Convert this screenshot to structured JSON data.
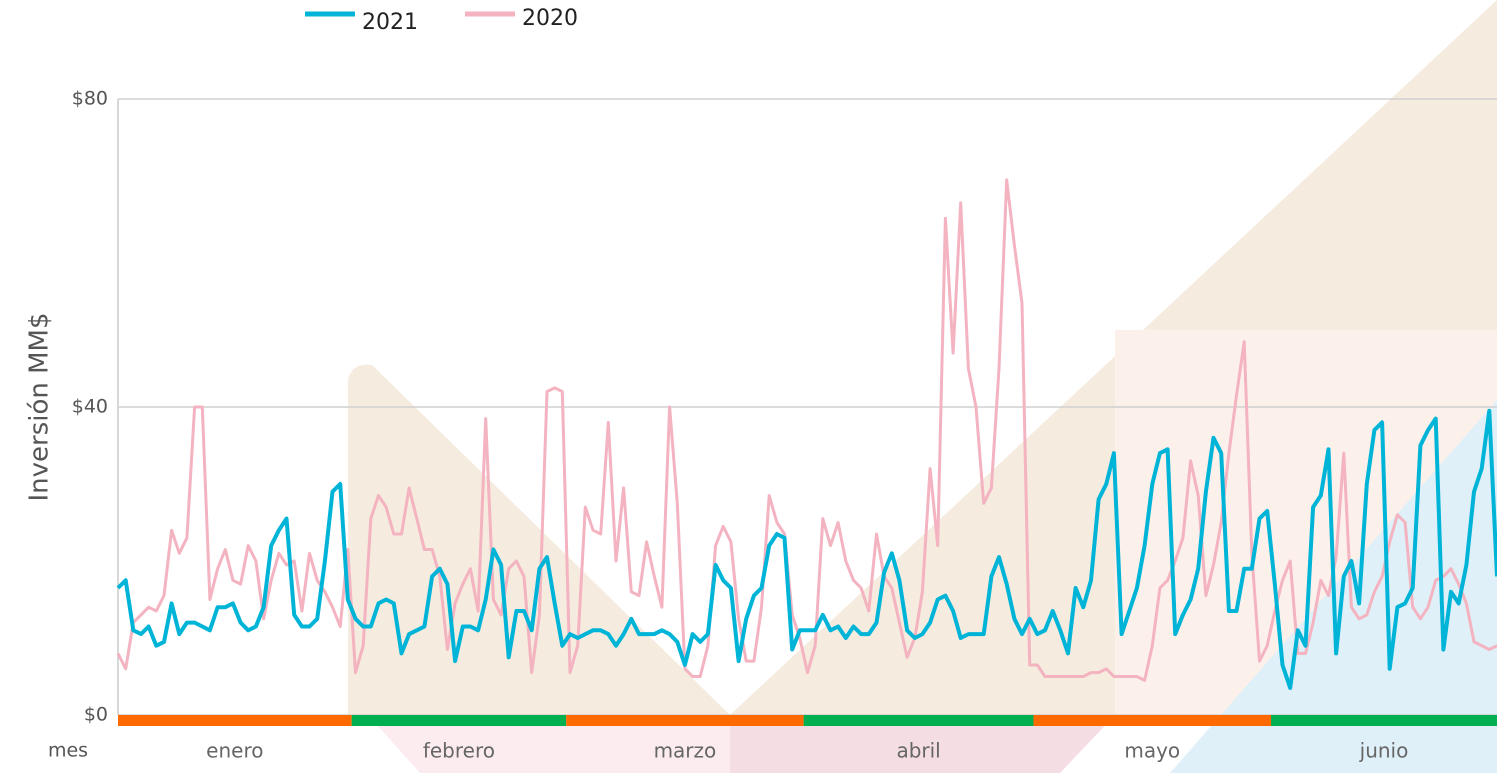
{
  "chart_data": {
    "type": "line",
    "ylabel": "Inversión MM$",
    "xlabel": "mes",
    "ylim": [
      0,
      80
    ],
    "yticks": [
      {
        "value": 0,
        "label": "$0"
      },
      {
        "value": 40,
        "label": "$40"
      },
      {
        "value": 80,
        "label": "$80"
      }
    ],
    "grid": true,
    "categories": [
      "enero",
      "febrero",
      "marzo",
      "abril",
      "mayo",
      "junio"
    ],
    "category_colors": [
      "#ff6a00",
      "#00b050",
      "#ff6a00",
      "#00b050",
      "#ff6a00",
      "#00b050"
    ],
    "series": [
      {
        "name": "2021",
        "color": "#00b4d8",
        "values": [
          [
            16.5,
            17.5,
            11,
            10.5,
            11.5,
            9,
            9.5,
            14.5,
            10.5,
            12,
            12,
            11.5,
            11,
            14,
            14,
            14.5,
            12,
            11,
            11.5,
            14,
            22,
            24,
            25.5,
            13,
            11.5,
            11.5,
            12.5,
            20,
            29,
            30,
            15
          ],
          [
            12.5,
            11.5,
            11.5,
            14.5,
            15,
            14.5,
            8,
            10.5,
            11,
            11.5,
            18,
            19,
            17,
            7,
            11.5,
            11.5,
            11,
            15,
            21.5,
            19.5,
            7.5,
            13.5,
            13.5,
            11,
            19,
            20.5,
            14.5,
            9
          ],
          [
            10.5,
            10,
            10.5,
            11,
            11,
            10.5,
            9,
            10.5,
            12.5,
            10.5,
            10.5,
            10.5,
            11,
            10.5,
            9.5,
            6.5,
            10.5,
            9.5,
            10.5,
            19.5,
            17.5,
            16.5,
            7,
            12.5,
            15.5,
            16.5,
            22,
            23.5,
            23,
            8.5,
            11
          ],
          [
            11,
            11,
            13,
            11,
            11.5,
            10,
            11.5,
            10.5,
            10.5,
            12,
            18.5,
            21,
            17.5,
            11,
            10,
            10.5,
            12,
            15,
            15.5,
            13.5,
            10,
            10.5,
            10.5,
            10.5,
            18,
            20.5,
            17,
            12.5,
            10.5,
            12.5
          ],
          [
            10.5,
            11,
            13.5,
            11,
            8,
            16.5,
            14,
            17.5,
            28,
            30,
            34,
            10.5,
            13.5,
            16.5,
            22,
            30,
            34,
            34.5,
            10.5,
            13,
            15,
            19,
            29,
            36,
            34,
            13.5,
            13.5,
            19,
            19,
            25.5,
            26.5
          ],
          [
            17,
            6.5,
            3.5,
            11,
            9,
            27,
            28.5,
            34.5,
            8,
            18,
            20,
            14.5,
            30,
            37,
            38,
            6,
            14,
            14.5,
            16.5,
            35,
            37,
            38.5,
            8.5,
            16,
            14.5,
            19.5,
            29,
            32,
            39.5,
            18
          ]
        ]
      },
      {
        "name": "2020",
        "color": "#f4b3c0",
        "values": [
          [
            8,
            6,
            12,
            13,
            14,
            13.5,
            15.5,
            24,
            21,
            23,
            40,
            40,
            15,
            19,
            21.5,
            17.5,
            17,
            22,
            20,
            12.5,
            17.5,
            21,
            19.5,
            20,
            13.5,
            21,
            17.5,
            16,
            14,
            11.5,
            21.5
          ],
          [
            5.5,
            9,
            25.5,
            28.5,
            27,
            23.5,
            23.5,
            29.5,
            25.5,
            21.5,
            21.5,
            18,
            8.5,
            14.5,
            17,
            19,
            13.5,
            38.5,
            15,
            13,
            19,
            20,
            18,
            5.5,
            13,
            42,
            42.5,
            42
          ],
          [
            5.5,
            9,
            27,
            24,
            23.5,
            38,
            20,
            29.5,
            16,
            15.5,
            22.5,
            18,
            14,
            40,
            27.5,
            6,
            5,
            5,
            9,
            22,
            24.5,
            22.5,
            12.5,
            7,
            7,
            14,
            28.5,
            25,
            23.5,
            13,
            10
          ],
          [
            5.5,
            9,
            25.5,
            22,
            25,
            20,
            17.5,
            16.5,
            13.5,
            23.5,
            18,
            16.5,
            12,
            7.5,
            10,
            16,
            32,
            22,
            64.5,
            47,
            66.5,
            45,
            40,
            27.5,
            29.5,
            45,
            69.5,
            61,
            53.5,
            6.5
          ],
          [
            6.5,
            5,
            5,
            5,
            5,
            5,
            5,
            5.5,
            5.5,
            6,
            5,
            5,
            5,
            5,
            4.5,
            9,
            16.5,
            17.5,
            20,
            23,
            33,
            28.5,
            15.5,
            19.5,
            25,
            34,
            41.5,
            48.5,
            21,
            7,
            9
          ],
          [
            13.5,
            17.5,
            20,
            8,
            8,
            12,
            17.5,
            15.5,
            20.5,
            34,
            14,
            12.5,
            13,
            16,
            18,
            22.5,
            26,
            25,
            14,
            12.5,
            14,
            17.5,
            18,
            19,
            17,
            14.5,
            9.5,
            9,
            8.5,
            9
          ]
        ]
      }
    ]
  }
}
